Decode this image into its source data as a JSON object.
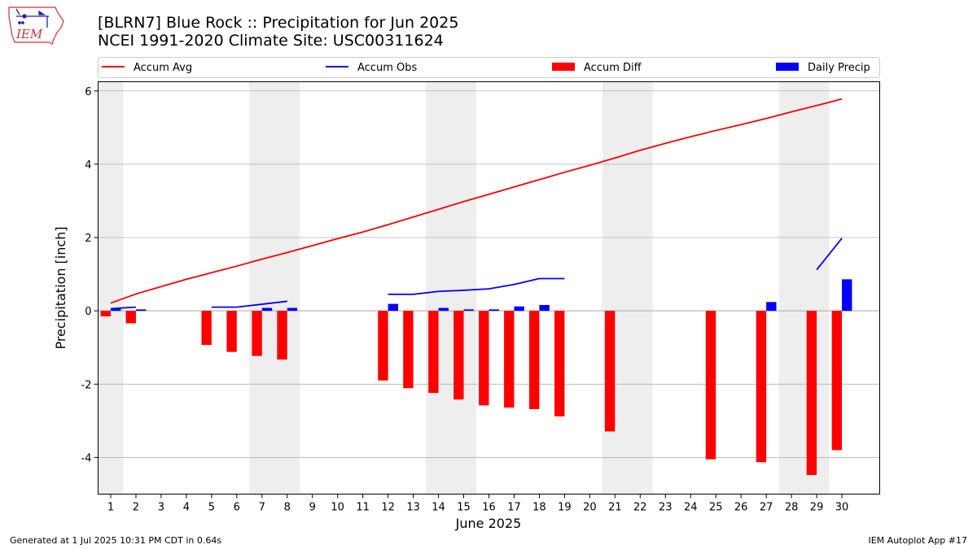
{
  "header": {
    "title_line_1": "[BLRN7] Blue Rock :: Precipitation for Jun 2025",
    "title_line_2": "NCEI 1991-2020 Climate Site: USC00311624",
    "logo_text": "IEM"
  },
  "footer": {
    "left": "Generated at 1 Jul 2025 10:31 PM CDT in 0.64s",
    "right": "IEM Autoplot App #17"
  },
  "colors": {
    "accum_avg": "#ff0000",
    "accum_obs": "#0000ff",
    "accum_diff": "#ff0000",
    "daily_precip": "#0000ff",
    "weekend_shade": "#eeeeee",
    "grid": "#b0b0b0"
  },
  "chart_data": {
    "type": "bar",
    "xlabel": "June 2025",
    "ylabel": "Precipitation [inch]",
    "xlim": [
      0.5,
      31.5
    ],
    "ylim": [
      -5,
      6.25
    ],
    "y_ticks": [
      -4,
      -2,
      0,
      2,
      4,
      6
    ],
    "x_ticks": [
      1,
      2,
      3,
      4,
      5,
      6,
      7,
      8,
      9,
      10,
      11,
      12,
      13,
      14,
      15,
      16,
      17,
      18,
      19,
      20,
      21,
      22,
      23,
      24,
      25,
      26,
      27,
      28,
      29,
      30
    ],
    "grid": "horizontal",
    "legend_position": "top",
    "legend": [
      {
        "label": "Accum Avg",
        "kind": "line",
        "color": "#ff0000"
      },
      {
        "label": "Accum Obs",
        "kind": "line",
        "color": "#0000ff"
      },
      {
        "label": "Accum Diff",
        "kind": "bar",
        "color": "#ff0000"
      },
      {
        "label": "Daily Precip",
        "kind": "bar",
        "color": "#0000ff"
      }
    ],
    "weekend_shading": [
      [
        0.5,
        1.5
      ],
      [
        6.5,
        8.5
      ],
      [
        13.5,
        15.5
      ],
      [
        20.5,
        22.5
      ],
      [
        27.5,
        29.5
      ]
    ],
    "series": [
      {
        "name": "Accum Avg",
        "type": "line",
        "color": "#ff0000",
        "x": [
          1,
          2,
          3,
          4,
          5,
          6,
          7,
          8,
          9,
          10,
          11,
          12,
          13,
          14,
          15,
          16,
          17,
          18,
          19,
          20,
          21,
          22,
          23,
          24,
          25,
          26,
          27,
          28,
          29,
          30
        ],
        "values": [
          0.21,
          0.46,
          0.66,
          0.86,
          1.04,
          1.22,
          1.41,
          1.59,
          1.78,
          1.97,
          2.15,
          2.35,
          2.56,
          2.77,
          2.98,
          3.18,
          3.38,
          3.58,
          3.78,
          3.97,
          4.17,
          4.38,
          4.57,
          4.75,
          4.92,
          5.08,
          5.25,
          5.43,
          5.6,
          5.78
        ]
      },
      {
        "name": "Accum Obs",
        "type": "line",
        "color": "#0000ff",
        "x": [
          1,
          2,
          3,
          4,
          5,
          6,
          7,
          8,
          9,
          10,
          11,
          12,
          13,
          14,
          15,
          16,
          17,
          18,
          19,
          20,
          21,
          22,
          23,
          24,
          25,
          26,
          27,
          28,
          29,
          30
        ],
        "values": [
          0.06,
          0.1,
          null,
          null,
          0.1,
          0.1,
          0.18,
          0.26,
          null,
          null,
          null,
          0.45,
          0.45,
          0.53,
          0.56,
          0.6,
          0.72,
          0.88,
          0.88,
          null,
          null,
          null,
          null,
          null,
          null,
          null,
          null,
          null,
          1.12,
          1.98
        ]
      },
      {
        "name": "Accum Diff",
        "type": "bar",
        "color": "#ff0000",
        "x": [
          1,
          2,
          5,
          6,
          7,
          8,
          12,
          13,
          14,
          15,
          16,
          17,
          18,
          19,
          21,
          25,
          27,
          29,
          30
        ],
        "values": [
          -0.15,
          -0.34,
          -0.93,
          -1.12,
          -1.23,
          -1.33,
          -1.9,
          -2.11,
          -2.24,
          -2.42,
          -2.58,
          -2.64,
          -2.68,
          -2.88,
          -3.29,
          -4.05,
          -4.13,
          -4.48,
          -3.8
        ]
      },
      {
        "name": "Daily Precip",
        "type": "bar",
        "color": "#0000ff",
        "x": [
          1,
          2,
          7,
          8,
          12,
          14,
          15,
          16,
          17,
          18,
          27,
          30
        ],
        "values": [
          0.06,
          0.04,
          0.08,
          0.08,
          0.19,
          0.08,
          0.04,
          0.04,
          0.12,
          0.16,
          0.24,
          0.86
        ]
      }
    ]
  }
}
